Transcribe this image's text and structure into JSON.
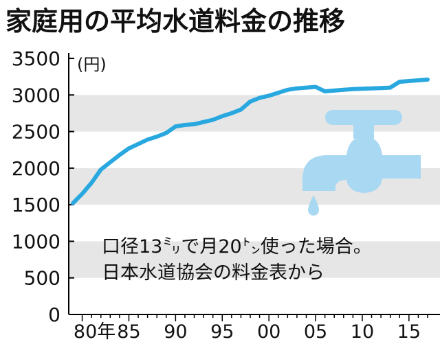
{
  "chart_data": {
    "type": "line",
    "title": "家庭用の平均水道料金の推移",
    "ylabel": "(円)",
    "ylim": [
      0,
      3500
    ],
    "yticks": [
      0,
      500,
      1000,
      1500,
      2000,
      2500,
      3000,
      3500
    ],
    "xlim": [
      1979,
      2017
    ],
    "xticks": [
      {
        "x": 1980,
        "label": "80年"
      },
      {
        "x": 1985,
        "label": "85"
      },
      {
        "x": 1990,
        "label": "90"
      },
      {
        "x": 1995,
        "label": "95"
      },
      {
        "x": 2000,
        "label": "00"
      },
      {
        "x": 2005,
        "label": "05"
      },
      {
        "x": 2010,
        "label": "10"
      },
      {
        "x": 2015,
        "label": "15"
      }
    ],
    "grid": "alternating horizontal bands",
    "x": [
      1979,
      1980,
      1981,
      1982,
      1983,
      1984,
      1985,
      1986,
      1987,
      1988,
      1989,
      1990,
      1991,
      1992,
      1993,
      1994,
      1995,
      1996,
      1997,
      1998,
      1999,
      2000,
      2001,
      2002,
      2003,
      2004,
      2005,
      2006,
      2007,
      2008,
      2009,
      2010,
      2011,
      2012,
      2013,
      2014,
      2015,
      2016,
      2017
    ],
    "values": [
      1520,
      1650,
      1800,
      1980,
      2080,
      2180,
      2270,
      2330,
      2390,
      2430,
      2480,
      2570,
      2590,
      2600,
      2630,
      2660,
      2710,
      2750,
      2800,
      2910,
      2960,
      2990,
      3030,
      3070,
      3090,
      3100,
      3110,
      3050,
      3060,
      3070,
      3080,
      3085,
      3090,
      3095,
      3100,
      3180,
      3190,
      3200,
      3210
    ],
    "colors": {
      "line": "#29a8e0",
      "band": "#e6e6e6",
      "faucet": "#a9d8f2",
      "axis": "#000000"
    },
    "icon": "faucet-icon",
    "notes": [
      "口径13㍉で月20㌧使った場合。",
      "日本水道協会の料金表から"
    ]
  }
}
